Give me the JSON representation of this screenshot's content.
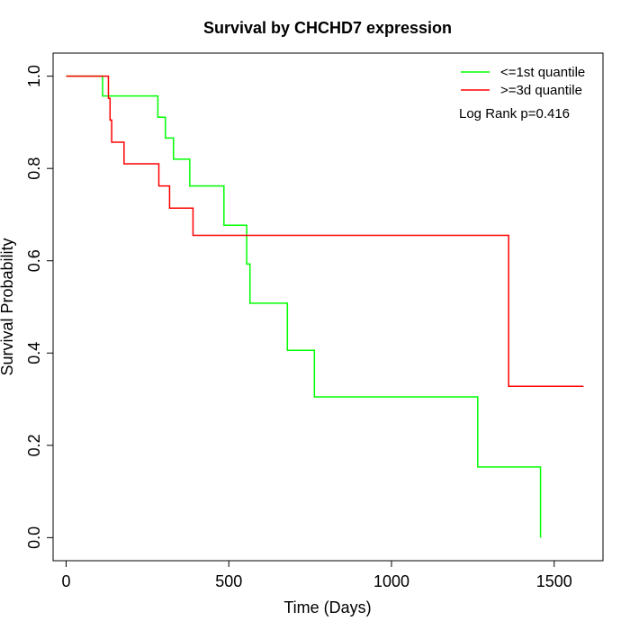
{
  "chart_data": {
    "type": "line",
    "step": true,
    "title": "Survival by CHCHD7 expression",
    "xlabel": "Time (Days)",
    "ylabel": "Survival Probability",
    "xlim": [
      -40,
      1650
    ],
    "ylim": [
      -0.05,
      1.05
    ],
    "xticks": [
      0,
      500,
      1000,
      1500
    ],
    "yticks": [
      0.0,
      0.2,
      0.4,
      0.6,
      0.8,
      1.0
    ],
    "xtick_labels": [
      "0",
      "500",
      "1000",
      "1500"
    ],
    "ytick_labels": [
      "0.0",
      "0.2",
      "0.4",
      "0.6",
      "0.8",
      "1.0"
    ],
    "grid": false,
    "legend_position": "top-right",
    "annotation": "Log Rank p=0.416",
    "series": [
      {
        "name": "<=1st quantile",
        "color": "#00ff00",
        "x": [
          0,
          112,
          282,
          305,
          330,
          380,
          485,
          555,
          565,
          680,
          763,
          1265,
          1458,
          1458
        ],
        "y": [
          1.0,
          0.957,
          0.911,
          0.866,
          0.82,
          0.762,
          0.677,
          0.593,
          0.508,
          0.406,
          0.305,
          0.153,
          0.153,
          0.0
        ]
      },
      {
        "name": ">=3d quantile",
        "color": "#ff0000",
        "x": [
          0,
          130,
          135,
          140,
          178,
          285,
          318,
          390,
          1360,
          1590
        ],
        "y": [
          1.0,
          0.952,
          0.905,
          0.857,
          0.81,
          0.762,
          0.714,
          0.655,
          0.328,
          0.328
        ]
      }
    ]
  }
}
